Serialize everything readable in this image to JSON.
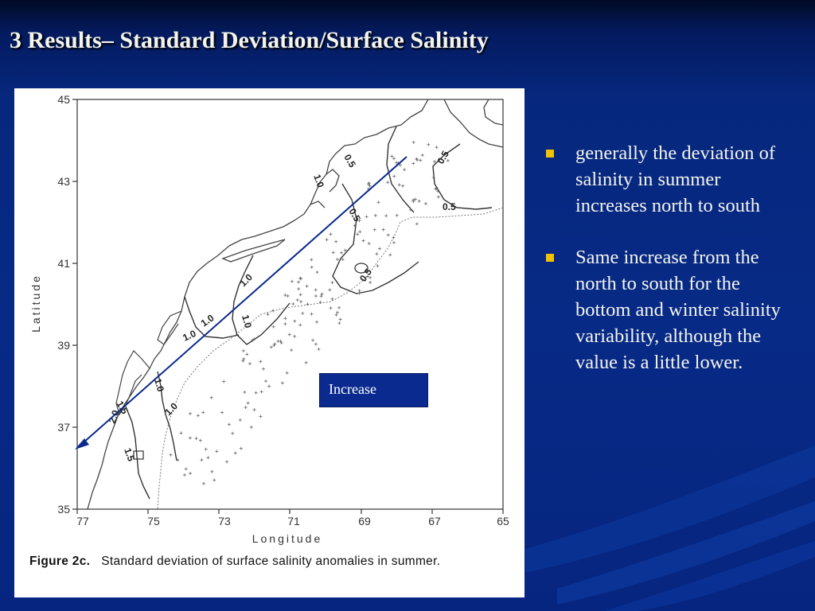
{
  "slide": {
    "title": "3 Results– Standard Deviation/Surface Salinity"
  },
  "figure": {
    "caption_label": "Figure 2c.",
    "caption_text": "Standard deviation of surface salinity anomalies in summer.",
    "y_axis_label": "Latitude",
    "x_axis_label": "Longitude",
    "y_ticks": [
      "45",
      "43",
      "41",
      "39",
      "37",
      "35"
    ],
    "x_ticks": [
      "77",
      "75",
      "73",
      "71",
      "69",
      "67",
      "65"
    ],
    "contour_labels": {
      "c1": "0.5",
      "c2": "0.5",
      "c3": "0.5",
      "c4": "0.5",
      "c5": "0.5",
      "c6": "1.0",
      "c7": "1.0",
      "c8": "1.0",
      "c9": "1.0",
      "c10": "1.0",
      "c11": "1.0",
      "c12": "1.5",
      "c13": "2.0",
      "c14": "1.5",
      "c15": "1.0"
    },
    "arrow_color": "#0b2a8c"
  },
  "annotation": {
    "increase_label": "Increase"
  },
  "bullets": [
    {
      "text": "generally the deviation of salinity in summer increases north to south"
    },
    {
      "text": "Same increase from the north to south for the bottom and winter salinity variability, although the value is a little lower."
    }
  ],
  "colors": {
    "background": "#072a86",
    "title_text": "#f4f4ee",
    "bullet_marker": "#f2c200",
    "increase_box": "#0a2a8f"
  }
}
